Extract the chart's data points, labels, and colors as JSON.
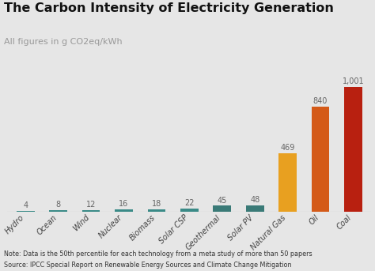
{
  "categories": [
    "Hydro",
    "Ocean",
    "Wind",
    "Nuclear",
    "Biomass",
    "Solar CSP",
    "Geothermal",
    "Solar PV",
    "Natural Gas",
    "Oil",
    "Coal"
  ],
  "values": [
    4,
    8,
    12,
    16,
    18,
    22,
    45,
    48,
    469,
    840,
    1001
  ],
  "bar_colors": [
    "#3a8a87",
    "#3a8a87",
    "#3a8a87",
    "#3a8a87",
    "#3a8a87",
    "#3a8a87",
    "#3a7a77",
    "#3a7a77",
    "#e8a020",
    "#d45a18",
    "#b82010"
  ],
  "value_labels": [
    "4",
    "8",
    "12",
    "16",
    "18",
    "22",
    "45",
    "48",
    "469",
    "840",
    "1,001"
  ],
  "title": "The Carbon Intensity of Electricity Generation",
  "subtitle": "All figures in g CO2eq/kWh",
  "note": "Note: Data is the 50th percentile for each technology from a meta study of more than 50 papers",
  "source": "Source: IPCC Special Report on Renewable Energy Sources and Climate Change Mitigation",
  "background_color": "#e6e6e6",
  "title_color": "#111111",
  "subtitle_color": "#999999",
  "label_color": "#666666",
  "note_color": "#333333",
  "ylim": [
    0,
    1130
  ],
  "title_fontsize": 11.5,
  "subtitle_fontsize": 8,
  "label_fontsize": 7,
  "tick_fontsize": 7,
  "note_fontsize": 5.8
}
